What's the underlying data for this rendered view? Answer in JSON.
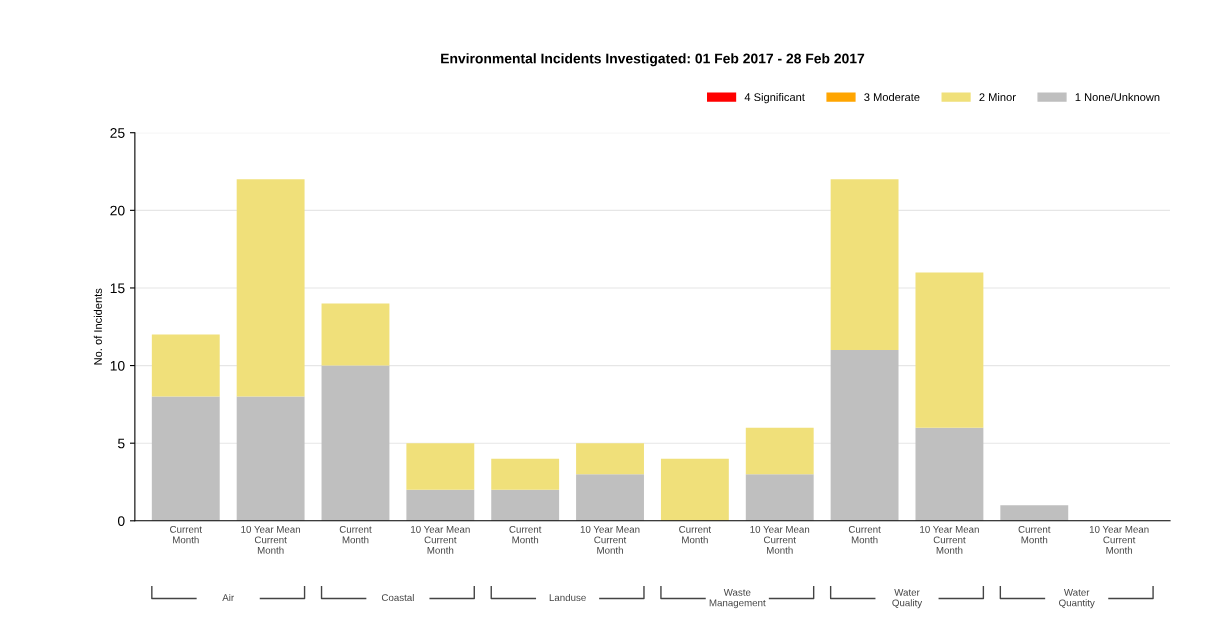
{
  "chart_data": {
    "type": "bar",
    "title": "Environmental Incidents Investigated: 01 Feb 2017 - 28 Feb 2017",
    "ylabel": "No. of Incidents",
    "categories": [
      "Current\nMonth",
      "10 Year Mean\nCurrent\nMonth",
      "Current\nMonth",
      "10 Year Mean\nCurrent\nMonth",
      "Current\nMonth",
      "10 Year Mean\nCurrent\nMonth",
      "Current\nMonth",
      "10 Year Mean\nCurrent\nMonth",
      "Current\nMonth",
      "10 Year Mean\nCurrent\nMonth",
      "Current\nMonth",
      "10 Year Mean\nCurrent\nMonth"
    ],
    "series": [
      {
        "name": "1 None/Unknown",
        "color": "#bfbfbf",
        "values": [
          8,
          8,
          10,
          2,
          2,
          3,
          0,
          3,
          11,
          6,
          1,
          0
        ]
      },
      {
        "name": "2 Minor",
        "color": "#f0e07a",
        "values": [
          4,
          14,
          4,
          3,
          2,
          2,
          4,
          3,
          11,
          10,
          0,
          0
        ]
      },
      {
        "name": "3 Moderate",
        "color": "#ffa500",
        "values": [
          0,
          0,
          0,
          0,
          0,
          0,
          0,
          0,
          0,
          0,
          0,
          0
        ]
      },
      {
        "name": "4 Significant",
        "color": "#ff0000",
        "values": [
          0,
          0,
          0,
          0,
          0,
          0,
          0,
          0,
          0,
          0,
          0,
          0
        ]
      }
    ],
    "stacked": true,
    "ylim": [
      0,
      25
    ],
    "yticks": [
      0,
      5,
      10,
      15,
      20,
      25
    ],
    "grid": "y",
    "legend": "top right",
    "annotations": [
      "Air",
      "Coastal",
      "Landuse",
      "Waste\nManagement",
      "Water\nQuality",
      "Water\nQuantity"
    ]
  }
}
